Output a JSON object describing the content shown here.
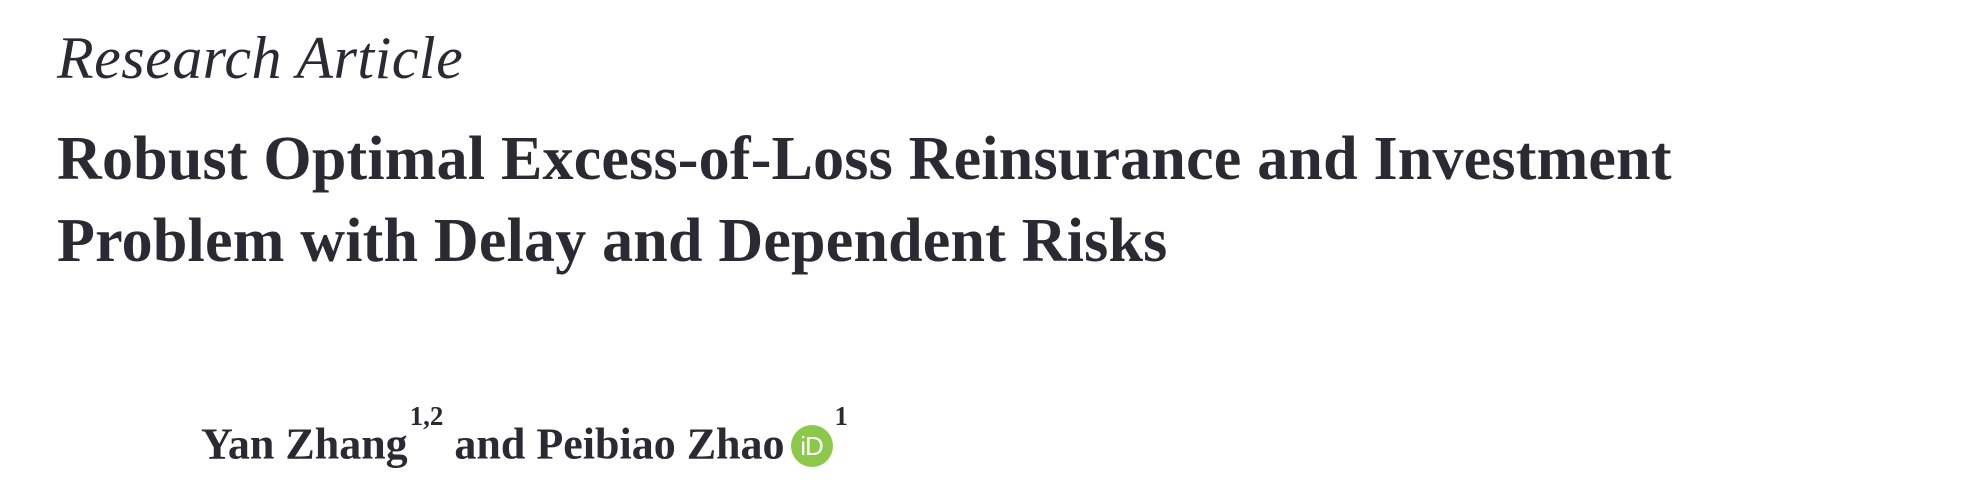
{
  "article_type": "Research Article",
  "title": {
    "line1": "Robust Optimal Excess-of-Loss Reinsurance and Investment",
    "line2": "Problem with Delay and Dependent Risks"
  },
  "authors": [
    {
      "name": "Yan Zhang",
      "affiliations": "1,2"
    },
    {
      "name": "Peibiao Zhao",
      "affiliations": "1",
      "orcid_icon": "orcid-icon",
      "orcid_text": "iD"
    }
  ],
  "author_separator": "and",
  "colors": {
    "text": "#2b2a33",
    "orcid": "#8cc94a"
  }
}
